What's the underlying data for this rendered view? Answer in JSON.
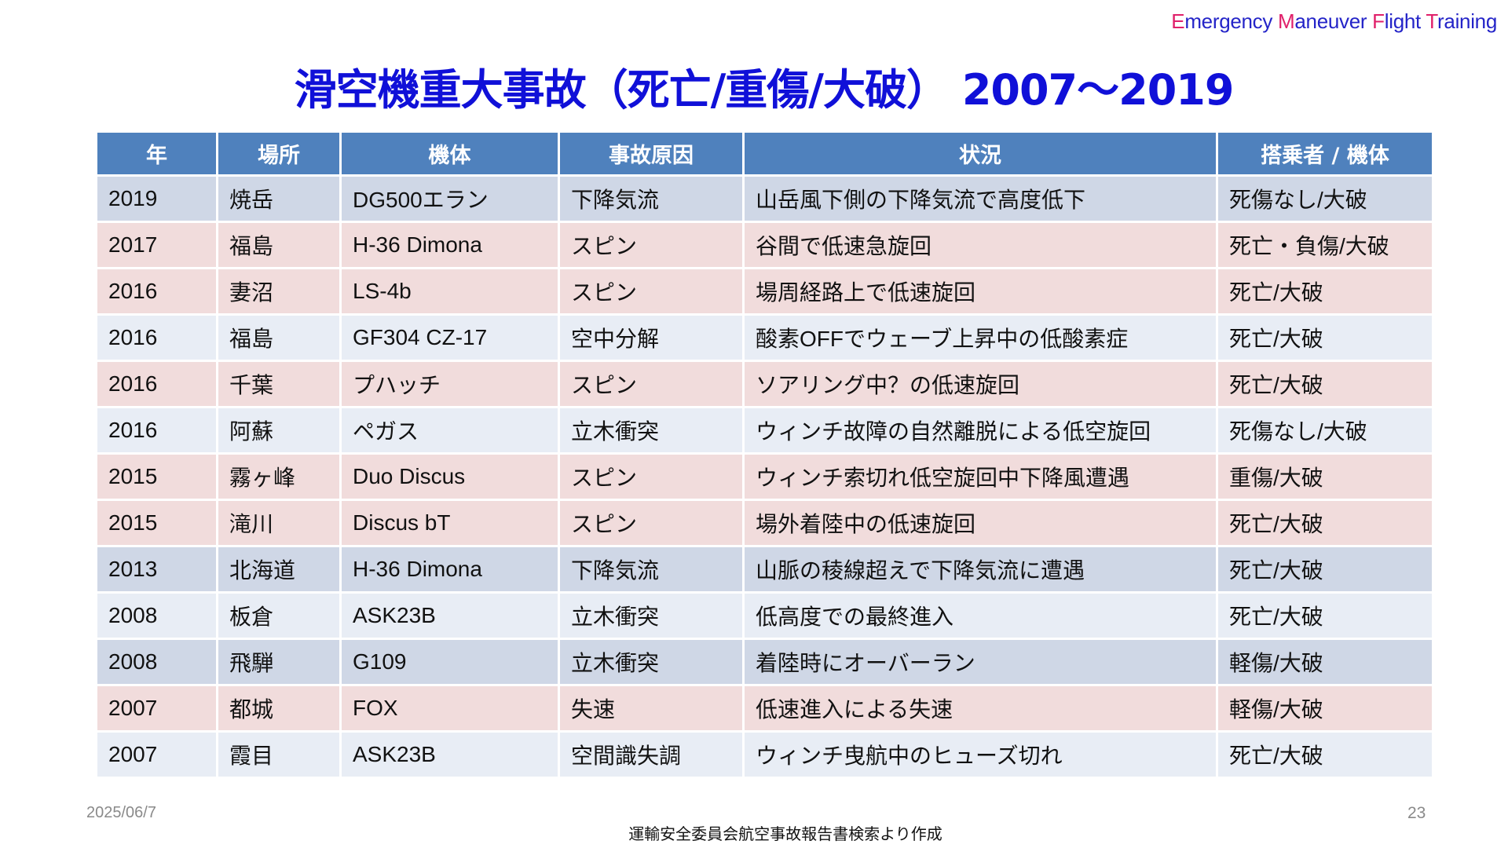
{
  "brand": {
    "words": [
      {
        "cap": "E",
        "rest": "mergency "
      },
      {
        "cap": "M",
        "rest": "aneuver "
      },
      {
        "cap": "F",
        "rest": "light "
      },
      {
        "cap": "T",
        "rest": "raining"
      }
    ]
  },
  "title": "滑空機重大事故（死亡/重傷/大破） 2007～2019",
  "colors": {
    "header": "#4f81bd",
    "title": "#1010d8",
    "brand_cap": "#e0206a",
    "brand": "#2424c8",
    "row_dark": "#cfd7e6",
    "row_pink": "#f1dcdc",
    "row_light": "#e8edf5"
  },
  "table": {
    "headers": [
      "年",
      "場所",
      "機体",
      "事故原因",
      "状況",
      "搭乗者 / 機体"
    ],
    "rows": [
      {
        "tone": "b",
        "cells": [
          "2019",
          "焼岳",
          "DG500エラン",
          "下降気流",
          "山岳風下側の下降気流で高度低下",
          "死傷なし/大破"
        ]
      },
      {
        "tone": "p",
        "cells": [
          "2017",
          "福島",
          "H-36 Dimona",
          "スピン",
          "谷間で低速急旋回",
          "死亡・負傷/大破"
        ]
      },
      {
        "tone": "p",
        "cells": [
          "2016",
          "妻沼",
          "LS-4b",
          "スピン",
          "場周経路上で低速旋回",
          "死亡/大破"
        ]
      },
      {
        "tone": "l",
        "cells": [
          "2016",
          "福島",
          "GF304 CZ-17",
          "空中分解",
          "酸素OFFでウェーブ上昇中の低酸素症",
          "死亡/大破"
        ]
      },
      {
        "tone": "p",
        "cells": [
          "2016",
          "千葉",
          "プハッチ",
          "スピン",
          "ソアリング中？の低速旋回",
          "死亡/大破"
        ]
      },
      {
        "tone": "l",
        "cells": [
          "2016",
          "阿蘇",
          "ペガス",
          "立木衝突",
          "ウィンチ故障の自然離脱による低空旋回",
          "死傷なし/大破"
        ]
      },
      {
        "tone": "p",
        "cells": [
          "2015",
          "霧ヶ峰",
          "Duo Discus",
          "スピン",
          "ウィンチ索切れ低空旋回中下降風遭遇",
          "重傷/大破"
        ]
      },
      {
        "tone": "p",
        "cells": [
          "2015",
          "滝川",
          "Discus bT",
          "スピン",
          "場外着陸中の低速旋回",
          "死亡/大破"
        ]
      },
      {
        "tone": "b",
        "cells": [
          "2013",
          "北海道",
          "H-36 Dimona",
          "下降気流",
          "山脈の稜線超えで下降気流に遭遇",
          "死亡/大破"
        ]
      },
      {
        "tone": "l",
        "cells": [
          "2008",
          "板倉",
          "ASK23B",
          "立木衝突",
          "低高度での最終進入",
          "死亡/大破"
        ]
      },
      {
        "tone": "b",
        "cells": [
          "2008",
          "飛騨",
          "G109",
          "立木衝突",
          "着陸時にオーバーラン",
          "軽傷/大破"
        ]
      },
      {
        "tone": "p",
        "cells": [
          "2007",
          "都城",
          "FOX",
          "失速",
          "低速進入による失速",
          "軽傷/大破"
        ]
      },
      {
        "tone": "l",
        "cells": [
          "2007",
          "霞目",
          "ASK23B",
          "空間識失調",
          "ウィンチ曳航中のヒューズ切れ",
          "死亡/大破"
        ]
      }
    ]
  },
  "footer": {
    "date": "2025/06/7",
    "page_number": "23",
    "source": "運輸安全委員会航空事故報告書検索より作成"
  }
}
